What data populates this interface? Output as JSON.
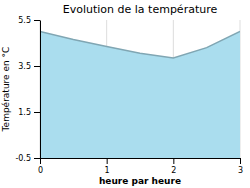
{
  "chart_data": {
    "type": "area",
    "title": "Evolution de la température",
    "xlabel": "heure par heure",
    "ylabel": "Température en °C",
    "x": [
      0,
      0.5,
      1,
      1.5,
      2,
      2.5,
      3
    ],
    "values": [
      5.0,
      4.65,
      4.35,
      4.05,
      3.85,
      4.3,
      5.0
    ],
    "color": "#aaddee",
    "xlim": [
      0,
      3
    ],
    "ylim": [
      -0.5,
      5.5
    ],
    "xticks": [
      0,
      1,
      2,
      3
    ],
    "yticks": [
      -0.5,
      1.5,
      3.5,
      5.5
    ],
    "grid": "x"
  }
}
